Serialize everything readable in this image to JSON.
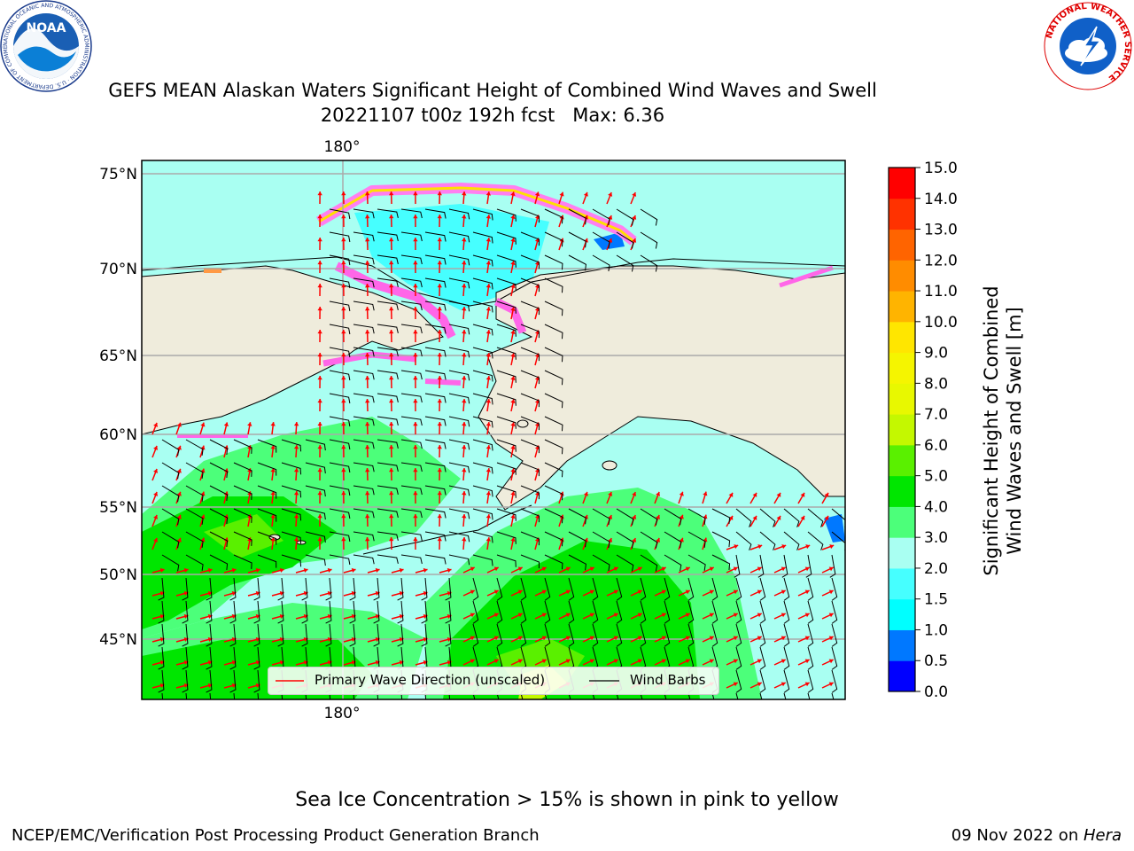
{
  "header": {
    "title_line1": "GEFS MEAN Alaskan Waters Significant Height of Combined Wind Waves and Swell",
    "title_line2": "20221107 t00z 192h fcst   Max: 6.36"
  },
  "logos": {
    "noaa": {
      "text": "NOAA",
      "ring_text": "NATIONAL OCEANIC AND ATMOSPHERIC ADMINISTRATION · U.S. DEPARTMENT OF COMMERCE"
    },
    "nws": {
      "ring_text": "NATIONAL WEATHER SERVICE"
    }
  },
  "map": {
    "lon_labels_top": [
      "180°"
    ],
    "lon_labels_bottom": [
      "180°"
    ],
    "lat_labels": [
      "75°N",
      "70°N",
      "65°N",
      "60°N",
      "55°N",
      "50°N",
      "45°N"
    ],
    "land_color": "#efecdc",
    "ocean_default_color": "#a9fff2"
  },
  "colorbar": {
    "title_line1": "Significant Height of Combined",
    "title_line2": "Wind Waves and Swell [m]",
    "ticks": [
      "0.0",
      "0.5",
      "1.0",
      "1.5",
      "2.0",
      "3.0",
      "4.0",
      "5.0",
      "6.0",
      "7.0",
      "8.0",
      "9.0",
      "10.0",
      "11.0",
      "12.0",
      "13.0",
      "14.0",
      "15.0"
    ],
    "colors": [
      "#0000ff",
      "#0078ff",
      "#00ffff",
      "#46ffff",
      "#a9fff2",
      "#4cff7a",
      "#00e600",
      "#5af000",
      "#c4f800",
      "#e8f800",
      "#f5f500",
      "#ffe600",
      "#ffb400",
      "#ff8c00",
      "#ff6400",
      "#ff3200",
      "#ff0000"
    ]
  },
  "legend": {
    "wave_label": "Primary Wave Direction (unscaled)",
    "barb_label": "Wind Barbs",
    "wave_color": "#ff0000",
    "barb_color": "#000000"
  },
  "footer": {
    "ice_note": "Sea Ice Concentration > 15% is shown in pink to yellow",
    "left": "NCEP/EMC/Verification Post Processing Product Generation Branch",
    "right_prefix": "09 Nov 2022 on ",
    "right_host": "Hera"
  }
}
